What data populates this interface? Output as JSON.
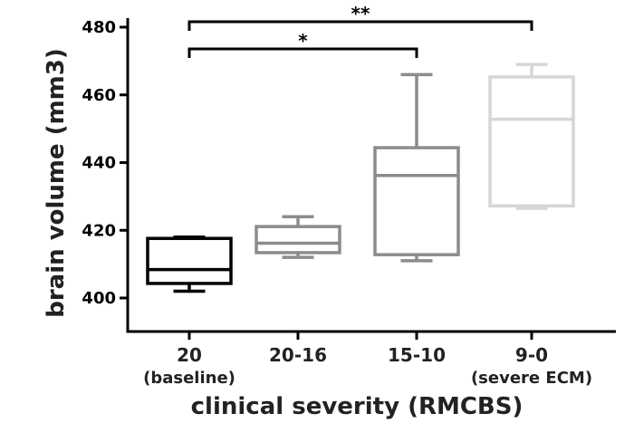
{
  "chart_data": {
    "type": "box",
    "ylabel": "brain volume (mm3)",
    "xlabel": "clinical severity (RMCBS)",
    "ylim": [
      395,
      483
    ],
    "yticks": [
      400,
      420,
      440,
      460,
      480
    ],
    "grid": false,
    "categories": [
      {
        "label": "20",
        "sublabel": "(baseline)",
        "color": "#000000",
        "min": 402,
        "q1": 404.3,
        "median": 408.4,
        "q3": 417.6,
        "max": 418
      },
      {
        "label": "20-16",
        "sublabel": "",
        "color": "#8c8c8c",
        "min": 412,
        "q1": 413.4,
        "median": 416.2,
        "q3": 421.1,
        "max": 424
      },
      {
        "label": "15-10",
        "sublabel": "",
        "color": "#8c8c8c",
        "min": 411,
        "q1": 412.8,
        "median": 436.2,
        "q3": 444.4,
        "max": 466
      },
      {
        "label": "9-0",
        "sublabel": "(severe ECM)",
        "color": "#d6d6d6",
        "min": 426.5,
        "q1": 427.2,
        "median": 452.8,
        "q3": 465.3,
        "max": 469
      }
    ],
    "significance": [
      {
        "from": 0,
        "to": 3,
        "label": "**"
      },
      {
        "from": 0,
        "to": 2,
        "label": "*"
      }
    ]
  }
}
